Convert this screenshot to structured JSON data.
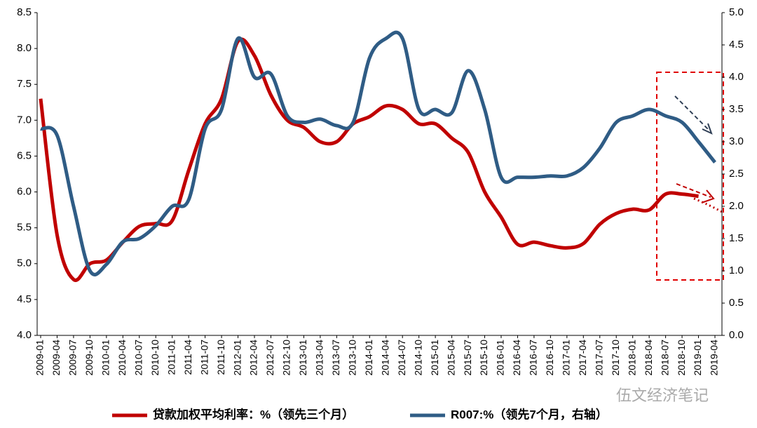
{
  "chart_data": {
    "type": "line",
    "categories": [
      "2009-01",
      "2009-04",
      "2009-07",
      "2009-10",
      "2010-01",
      "2010-04",
      "2010-07",
      "2010-10",
      "2011-01",
      "2011-04",
      "2011-07",
      "2011-10",
      "2012-01",
      "2012-04",
      "2012-07",
      "2012-10",
      "2013-01",
      "2013-04",
      "2013-07",
      "2013-10",
      "2014-01",
      "2014-04",
      "2014-07",
      "2014-10",
      "2015-01",
      "2015-04",
      "2015-07",
      "2015-10",
      "2016-01",
      "2016-04",
      "2016-07",
      "2016-10",
      "2017-01",
      "2017-04",
      "2017-07",
      "2017-10",
      "2018-01",
      "2018-04",
      "2018-07",
      "2018-10",
      "2019-01",
      "2019-04"
    ],
    "series": [
      {
        "name": "贷款加权平均利率：%（领先三个月）",
        "color": "#c00000",
        "values": [
          7.3,
          5.4,
          4.78,
          5.0,
          5.05,
          5.3,
          5.52,
          5.56,
          5.6,
          6.3,
          6.95,
          7.3,
          8.1,
          7.9,
          7.35,
          7.0,
          6.9,
          6.7,
          6.7,
          6.95,
          7.05,
          7.2,
          7.15,
          6.95,
          6.95,
          6.75,
          6.55,
          6.0,
          5.65,
          5.27,
          5.3,
          5.25,
          5.22,
          5.28,
          5.55,
          5.7,
          5.76,
          5.75,
          5.97,
          5.97,
          5.94,
          null
        ]
      },
      {
        "name": "R007:%（领先7个月，右轴）",
        "color": "#2f5c85",
        "axis": "y2",
        "values": [
          3.2,
          3.1,
          2.0,
          1.0,
          1.1,
          1.45,
          1.5,
          1.7,
          2.0,
          2.1,
          3.2,
          3.5,
          4.6,
          4.0,
          4.05,
          3.4,
          3.3,
          3.35,
          3.25,
          3.3,
          4.3,
          4.6,
          4.6,
          3.5,
          3.5,
          3.45,
          4.1,
          3.5,
          2.45,
          2.45,
          2.45,
          2.47,
          2.47,
          2.6,
          2.9,
          3.3,
          3.4,
          3.5,
          3.4,
          3.3,
          3.0,
          2.68
        ]
      }
    ],
    "ylim": [
      4,
      8.5
    ],
    "yticks": [
      {
        "value": 4,
        "label": "4.0"
      },
      4.5,
      {
        "value": 5,
        "label": "5.0"
      },
      5.5,
      {
        "value": 6,
        "label": "6.0"
      },
      6.5,
      {
        "value": 7,
        "label": "7.0"
      },
      7.5,
      {
        "value": 8,
        "label": "8.0"
      },
      8.5
    ],
    "y2lim": [
      0,
      5
    ],
    "y2ticks": [
      {
        "value": 0,
        "label": "0.0"
      },
      0.5,
      {
        "value": 1,
        "label": "1.0"
      },
      1.5,
      {
        "value": 2,
        "label": "2.0"
      },
      2.5,
      {
        "value": 3,
        "label": "3.0"
      },
      3.5,
      {
        "value": 4,
        "label": "4.0"
      },
      4.5,
      {
        "value": 5,
        "label": "5.0"
      }
    ],
    "watermark": "伍文经济笔记"
  }
}
